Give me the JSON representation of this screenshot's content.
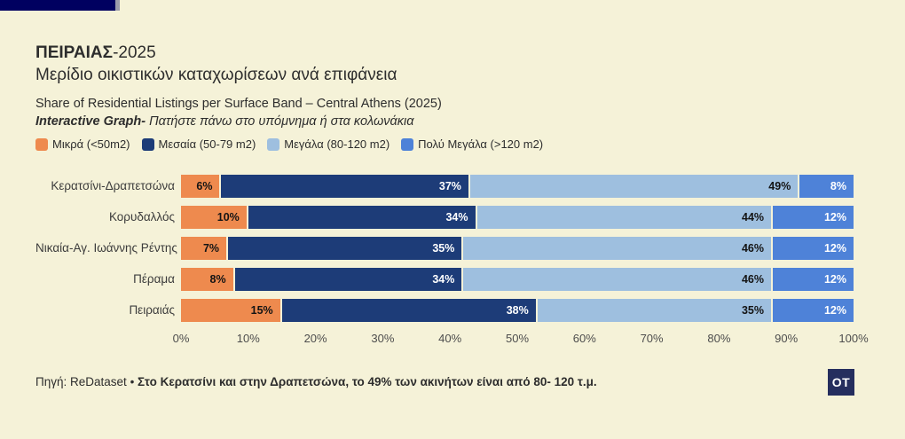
{
  "page": {
    "background_color": "#f5f2d8",
    "brand_stripe_color": "#000060"
  },
  "header": {
    "title_bold": "ΠΕΙΡΑΙΑΣ",
    "title_rest": "-2025",
    "subtitle": "Μερίδιο οικιστικών καταχωρίσεων ανά επιφάνεια",
    "subtitle_en": "Share of Residential Listings per Surface Band – Central Athens (2025)",
    "note_bold": "Interactive Graph-",
    "note_italic": " Πατήστε πάνω στο υπόμνημα ή στα κολωνάκια"
  },
  "chart_data": {
    "type": "bar",
    "orientation": "horizontal",
    "stacked": true,
    "categories": [
      "Κερατσίνι-Δραπετσώνα",
      "Κορυδαλλός",
      "Νικαία-Αγ. Ιωάννης Ρέντης",
      "Πέραμα",
      "Πειραιάς"
    ],
    "series": [
      {
        "name": "Μικρά (<50m2)",
        "color": "#ee8a4e",
        "label_color": "#141414",
        "values": [
          6,
          10,
          7,
          8,
          15
        ]
      },
      {
        "name": "Μεσαία (50-79 m2)",
        "color": "#1d3c78",
        "label_color": "#ffffff",
        "values": [
          37,
          34,
          35,
          34,
          38
        ]
      },
      {
        "name": "Μεγάλα (80-120 m2)",
        "color": "#9ebfdf",
        "label_color": "#141414",
        "values": [
          49,
          44,
          46,
          46,
          35
        ]
      },
      {
        "name": "Πολύ Μεγάλα (>120 m2)",
        "color": "#4e82d8",
        "label_color": "#ffffff",
        "values": [
          8,
          12,
          12,
          12,
          12
        ]
      }
    ],
    "value_suffix": "%",
    "xlim": [
      0,
      100
    ],
    "x_ticks": [
      "0%",
      "10%",
      "20%",
      "30%",
      "40%",
      "50%",
      "60%",
      "70%",
      "80%",
      "90%",
      "100%"
    ],
    "grid": false,
    "legend_position": "top"
  },
  "footer": {
    "source": "Πηγή: ReDataset",
    "separator": " • ",
    "highlight": "Στο Κερατσίνι και στην Δραπετσώνα, το 49% των ακινήτων είναι από 80- 120 τ.μ.",
    "logo_text": "OT"
  }
}
